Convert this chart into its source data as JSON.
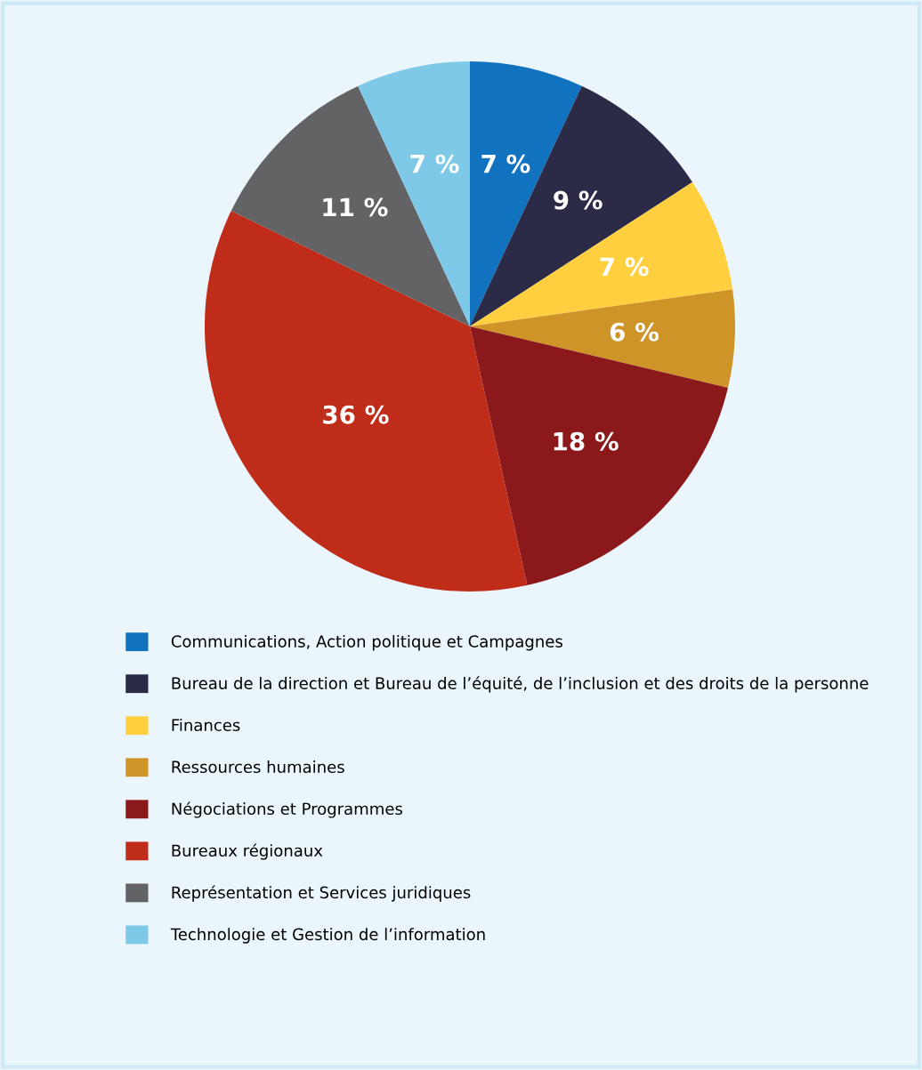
{
  "chart_data": {
    "type": "pie",
    "categories": [
      "Communications, Action politique et Campagnes",
      "Bureau de la direction et Bureau de l’équité, de l’inclusion et des droits de la personne",
      "Finances",
      "Ressources humaines",
      "Négociations et Programmes",
      "Bureaux régionaux",
      "Représentation et Services juridiques",
      "Technologie et Gestion de l’information"
    ],
    "values": [
      7,
      9,
      7,
      6,
      18,
      36,
      11,
      7
    ],
    "value_labels": [
      "7 %",
      "9 %",
      "7 %",
      "6 %",
      "18 %",
      "36 %",
      "11 %",
      "7 %"
    ],
    "colors": [
      "#1172bf",
      "#2b2a47",
      "#ffcf40",
      "#cf9427",
      "#8b181b",
      "#c02c1a",
      "#636365",
      "#7ec8e8"
    ],
    "legend": "bottom"
  }
}
